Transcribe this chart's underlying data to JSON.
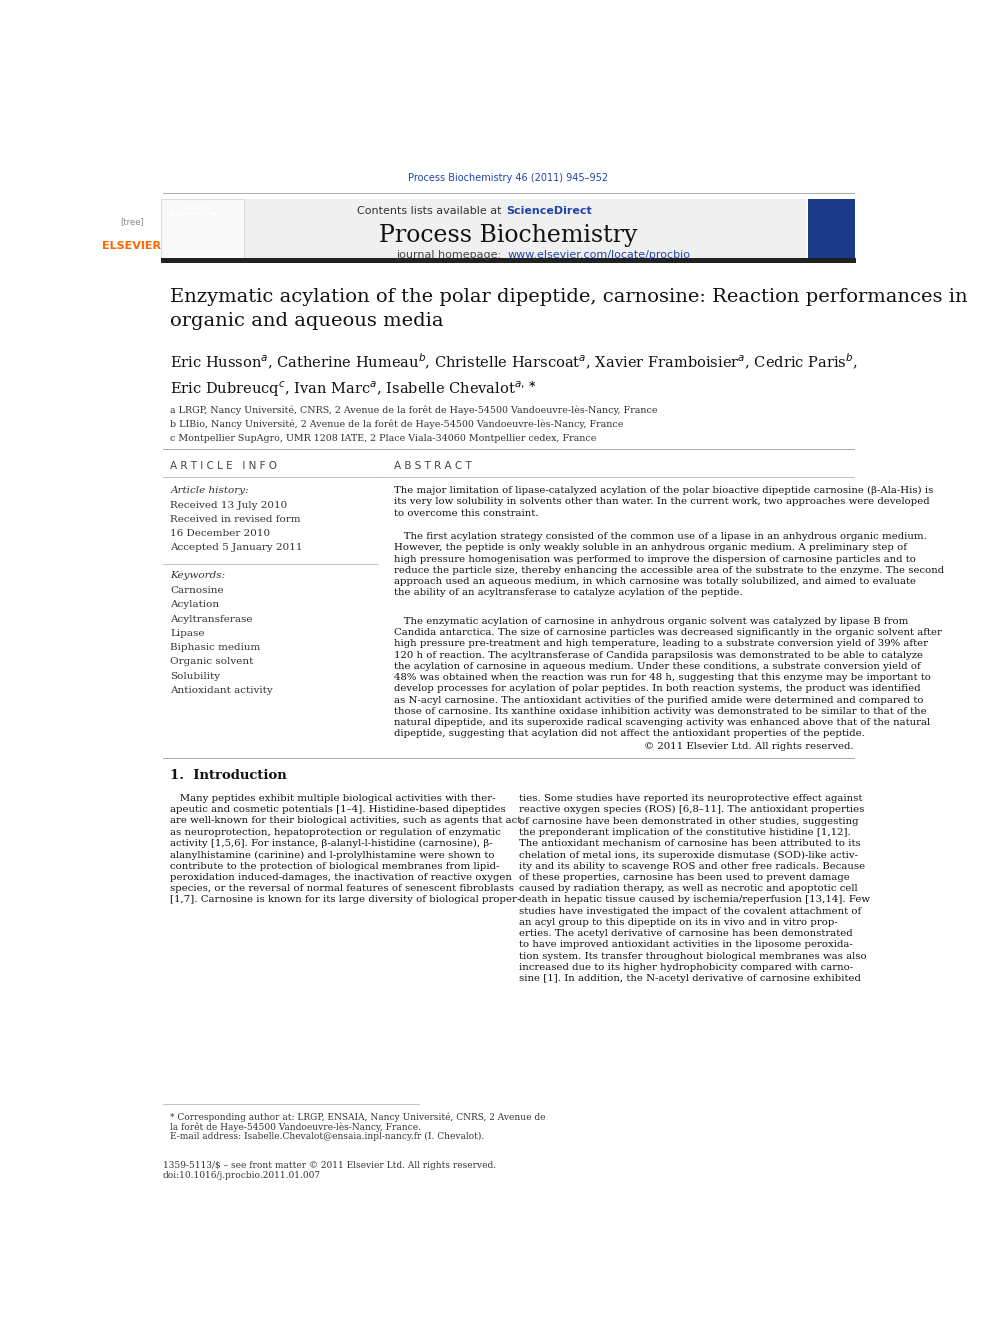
{
  "page_width": 9.92,
  "page_height": 13.23,
  "bg_color": "#ffffff",
  "journal_ref": "Process Biochemistry 46 (2011) 945–952",
  "journal_ref_color": "#2244aa",
  "header_bg": "#f0f0f0",
  "contents_line": "Contents lists available at",
  "sciencedirect_text": "ScienceDirect",
  "sciencedirect_color": "#2244aa",
  "journal_name": "Process Biochemistry",
  "journal_homepage_prefix": "journal homepage: ",
  "journal_url": "www.elsevier.com/locate/procbio",
  "journal_url_color": "#2244aa",
  "elsevier_color": "#ff6600",
  "paper_title": "Enzymatic acylation of the polar dipeptide, carnosine: Reaction performances in\norganic and aqueous media",
  "affil_a": "a LRGP, Nancy Université, CNRS, 2 Avenue de la forêt de Haye-54500 Vandoeuvre-lès-Nancy, France",
  "affil_b": "b LIBio, Nancy Université, 2 Avenue de la forêt de Haye-54500 Vandoeuvre-lès-Nancy, France",
  "affil_c": "c Montpellier SupAgro, UMR 1208 IATE, 2 Place Viala-34060 Montpellier cedex, France",
  "article_info_header": "A R T I C L E   I N F O",
  "abstract_header": "A B S T R A C T",
  "article_history_label": "Article history:",
  "received1": "Received 13 July 2010",
  "received2": "Received in revised form",
  "received3": "16 December 2010",
  "accepted": "Accepted 5 January 2011",
  "keywords_label": "Keywords:",
  "keywords": [
    "Carnosine",
    "Acylation",
    "Acyltransferase",
    "Lipase",
    "Biphasic medium",
    "Organic solvent",
    "Solubility",
    "Antioxidant activity"
  ],
  "abstract_p1": "The major limitation of lipase-catalyzed acylation of the polar bioactive dipeptide carnosine (β-Ala-His) is\nits very low solubility in solvents other than water. In the current work, two approaches were developed\nto overcome this constraint.",
  "abstract_p2": "   The first acylation strategy consisted of the common use of a lipase in an anhydrous organic medium.\nHowever, the peptide is only weakly soluble in an anhydrous organic medium. A preliminary step of\nhigh pressure homogenisation was performed to improve the dispersion of carnosine particles and to\nreduce the particle size, thereby enhancing the accessible area of the substrate to the enzyme. The second\napproach used an aqueous medium, in which carnosine was totally solubilized, and aimed to evaluate\nthe ability of an acyltransferase to catalyze acylation of the peptide.",
  "abstract_p3": "   The enzymatic acylation of carnosine in anhydrous organic solvent was catalyzed by lipase B from\nCandida antarctica. The size of carnosine particles was decreased significantly in the organic solvent after\nhigh pressure pre-treatment and high temperature, leading to a substrate conversion yield of 39% after\n120 h of reaction. The acyltransferase of Candida parapsilosis was demonstrated to be able to catalyze\nthe acylation of carnosine in aqueous medium. Under these conditions, a substrate conversion yield of\n48% was obtained when the reaction was run for 48 h, suggesting that this enzyme may be important to\ndevelop processes for acylation of polar peptides. In both reaction systems, the product was identified\nas N-acyl carnosine. The antioxidant activities of the purified amide were determined and compared to\nthose of carnosine. Its xanthine oxidase inhibition activity was demonstrated to be similar to that of the\nnatural dipeptide, and its superoxide radical scavenging activity was enhanced above that of the natural\ndipeptide, suggesting that acylation did not affect the antioxidant properties of the peptide.",
  "abstract_copyright": "                                                                                        © 2011 Elsevier Ltd. All rights reserved.",
  "intro_header": "1.  Introduction",
  "intro_col1": "   Many peptides exhibit multiple biological activities with ther-\napeutic and cosmetic potentials [1–4]. Histidine-based dipeptides\nare well-known for their biological activities, such as agents that act\nas neuroprotection, hepatoprotection or regulation of enzymatic\nactivity [1,5,6]. For instance, β-alanyl-l-histidine (carnosine), β-\nalanylhistamine (carinine) and l-prolylhistamine were shown to\ncontribute to the protection of biological membranes from lipid-\nperoxidation induced-damages, the inactivation of reactive oxygen\nspecies, or the reversal of normal features of senescent fibroblasts\n[1,7]. Carnosine is known for its large diversity of biological proper-",
  "intro_col2": "ties. Some studies have reported its neuroprotective effect against\nreactive oxygen species (ROS) [6,8–11]. The antioxidant properties\nof carnosine have been demonstrated in other studies, suggesting\nthe preponderant implication of the constitutive histidine [1,12].\nThe antioxidant mechanism of carnosine has been attributed to its\nchelation of metal ions, its superoxide dismutase (SOD)-like activ-\nity and its ability to scavenge ROS and other free radicals. Because\nof these properties, carnosine has been used to prevent damage\ncaused by radiation therapy, as well as necrotic and apoptotic cell\ndeath in hepatic tissue caused by ischemia/reperfusion [13,14]. Few\nstudies have investigated the impact of the covalent attachment of\nan acyl group to this dipeptide on its in vivo and in vitro prop-\nerties. The acetyl derivative of carnosine has been demonstrated\nto have improved antioxidant activities in the liposome peroxida-\ntion system. Its transfer throughout biological membranes was also\nincreased due to its higher hydrophobicity compared with carno-\nsine [1]. In addition, the N-acetyl derivative of carnosine exhibited",
  "footnote_line1": "* Corresponding author at: LRGP, ENSAIA, Nancy Université, CNRS, 2 Avenue de",
  "footnote_line2": "la forêt de Haye-54500 Vandoeuvre-lès-Nancy, France.",
  "footnote_line3": "E-mail address: Isabelle.Chevalot@ensaia.inpl-nancy.fr (I. Chevalot).",
  "footer_issn": "1359-5113/$ – see front matter © 2011 Elsevier Ltd. All rights reserved.",
  "footer_doi": "doi:10.1016/j.procbio.2011.01.007"
}
